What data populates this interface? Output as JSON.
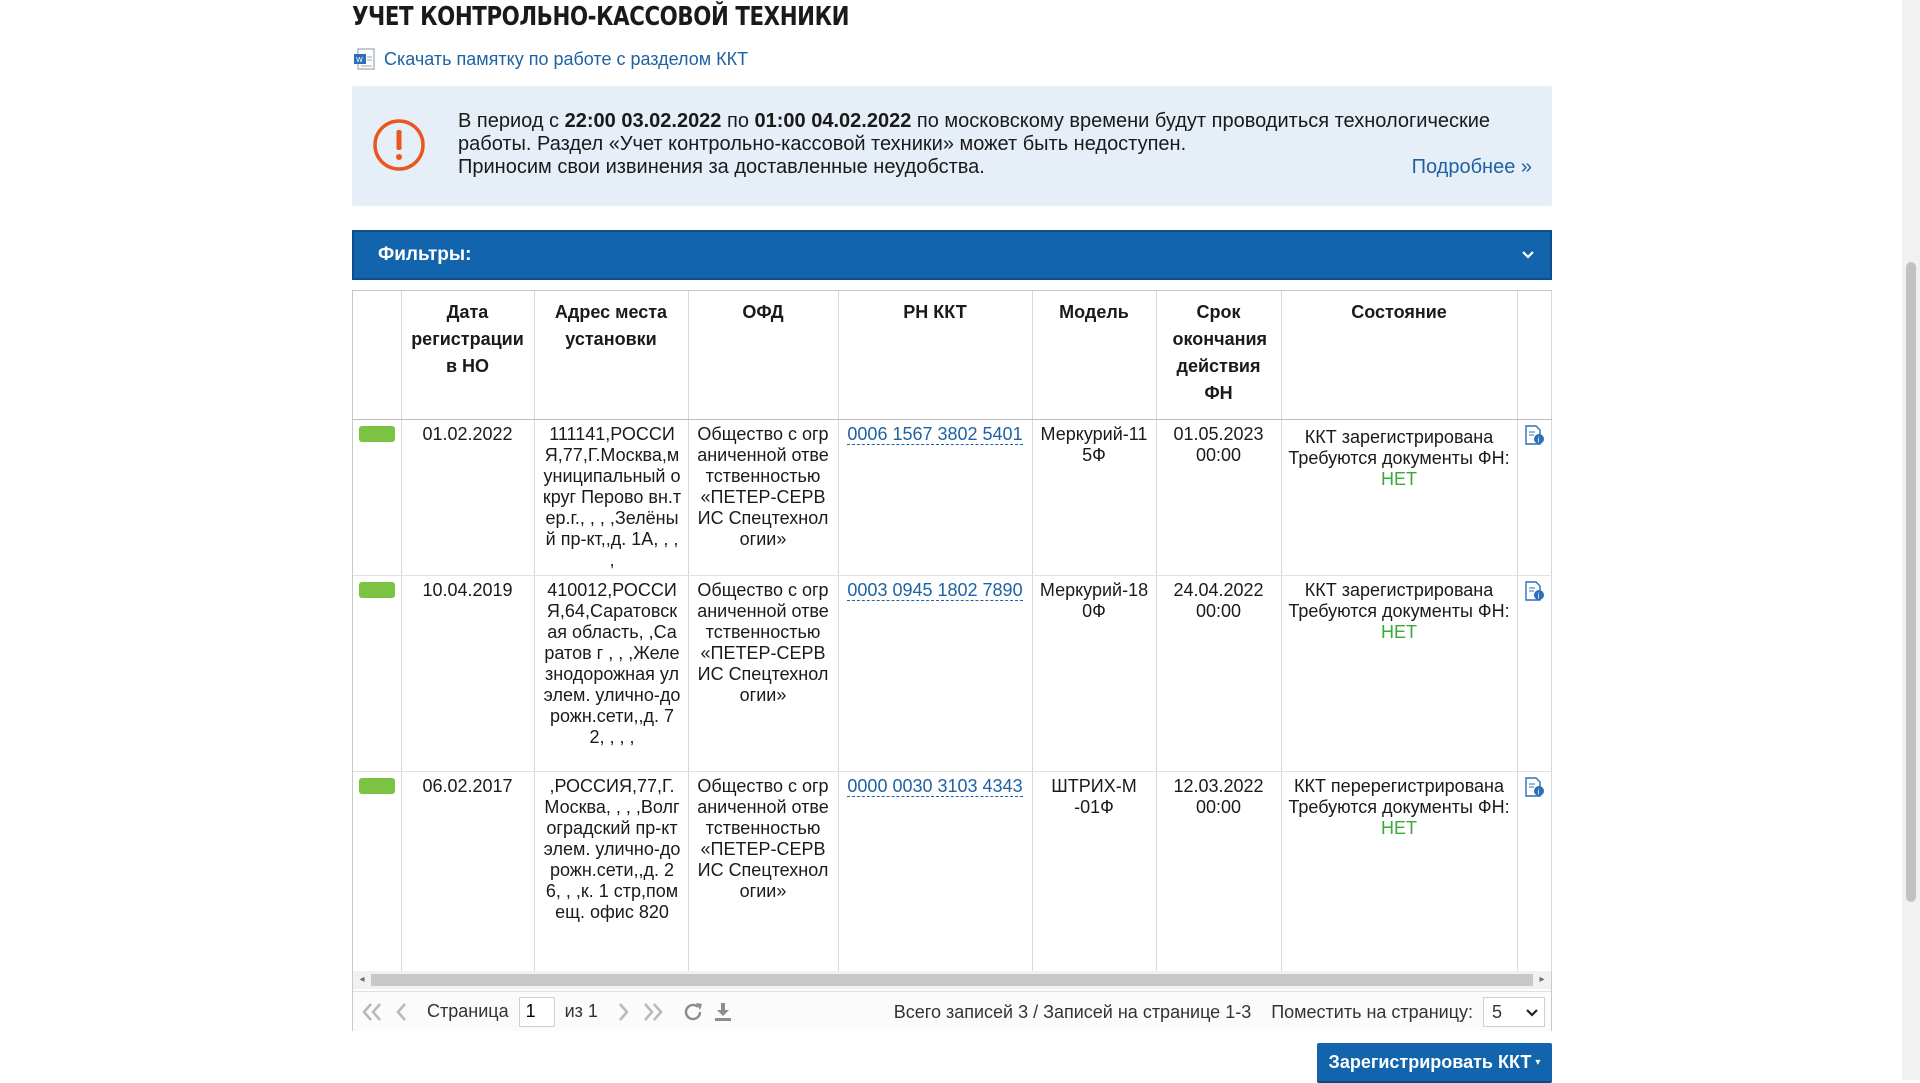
{
  "page": {
    "title": "УЧЕТ КОНТРОЛЬНО-КАССОВОЙ ТЕХНИКИ",
    "download_link": "Скачать памятку по работе с разделом ККТ"
  },
  "notice": {
    "t1": "В период с ",
    "t2": "22:00 03.02.2022",
    "t3": " по ",
    "t4": "01:00 04.02.2022",
    "t5": " по московскому времени будут проводиться технологические работы. Раздел «Учет контрольно-кассовой техники» может быть недоступен.",
    "t6": "Приносим свои извинения за доставленные неудобства.",
    "more": "Подробнее »",
    "accent_color": "#e8571e"
  },
  "filters": {
    "label": "Фильтры:"
  },
  "table": {
    "headers": {
      "reg_date": "Дата регистрации в НО",
      "address": "Адрес места установки",
      "ofd": "ОФД",
      "rn": "РН ККТ",
      "model": "Модель",
      "fn_expiry": "Срок окончания действия ФН",
      "state": "Состояние"
    },
    "rows": [
      {
        "status_color": "#7cc243",
        "reg_date": "01.02.2022",
        "address": "111141,РОССИЯ,77,Г.Москва,муниципальный округ Перово вн.тер.г., , , ,Зелёный пр-кт,,д. 1А, , , ,",
        "ofd": "Общество с ограниченной ответственностью «ПЕТЕР-СЕРВИС Спецтехнологии»",
        "rn": "0006 1567 3802 5401",
        "model": "Меркурий-115Ф",
        "fn_expiry": "01.05.2023 00:00",
        "state": "ККТ зарегистрирована",
        "docs_label": "Требуются документы ФН:",
        "docs_value": "НЕТ"
      },
      {
        "status_color": "#7cc243",
        "reg_date": "10.04.2019",
        "address": "410012,РОССИЯ,64,Саратовская область, ,Саратов г , , ,Железнодорожная ул элем. улично-дорожн.сети,,д. 72, , , ,",
        "ofd": "Общество с ограниченной ответственностью «ПЕТЕР-СЕРВИС Спецтехнологии»",
        "rn": "0003 0945 1802 7890",
        "model": "Меркурий-180Ф",
        "fn_expiry": "24.04.2022 00:00",
        "state": "ККТ зарегистрирована",
        "docs_label": "Требуются документы ФН:",
        "docs_value": "НЕТ"
      },
      {
        "status_color": "#7cc243",
        "reg_date": "06.02.2017",
        "address": ",РОССИЯ,77,Г.Москва, , , ,Волгоградский пр-кт элем. улично-дорожн.сети,,д. 26, , ,к. 1 стр,помещ. офис 820",
        "ofd": "Общество с ограниченной ответственностью «ПЕТЕР-СЕРВИС Спецтехнологии»",
        "rn": "0000 0030 3103 4343",
        "model": "ШТРИХ-М-01Ф",
        "fn_expiry": "12.03.2022 00:00",
        "state": "ККТ перерегистрирована",
        "docs_label": "Требуются документы ФН:",
        "docs_value": "НЕТ"
      }
    ]
  },
  "pager": {
    "page_label": "Страница",
    "page_value": "1",
    "of_label": "из 1",
    "summary": "Всего записей 3 / Записей на странице 1-3",
    "per_page_label": "Поместить на страницу:",
    "per_page_value": "5"
  },
  "actions": {
    "register": "Зарегистрировать ККТ"
  }
}
